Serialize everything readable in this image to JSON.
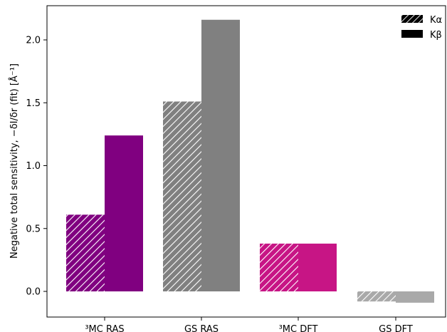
{
  "chart_data": {
    "type": "bar",
    "categories": [
      "³MC RAS",
      "GS RAS",
      "³MC DFT",
      "GS DFT"
    ],
    "series": [
      {
        "name": "Kα",
        "pattern": "hatched",
        "values": [
          0.61,
          1.51,
          0.38,
          -0.08
        ]
      },
      {
        "name": "Kβ",
        "pattern": "solid",
        "values": [
          1.24,
          2.16,
          0.38,
          -0.09
        ]
      }
    ],
    "category_colors": [
      "#800080",
      "#808080",
      "#c71585",
      "#a9a9a9"
    ],
    "title": "",
    "xlabel": "",
    "ylabel": "Negative total sensitivity, −δI/δr (fit) [Å⁻¹]",
    "ylim": [
      -0.2,
      2.28
    ],
    "yticks": [
      0.0,
      0.5,
      1.0,
      1.5,
      2.0
    ],
    "ytick_labels": [
      "0.0",
      "0.5",
      "1.0",
      "1.5",
      "2.0"
    ],
    "grid": false,
    "legend_position": "top-right"
  }
}
